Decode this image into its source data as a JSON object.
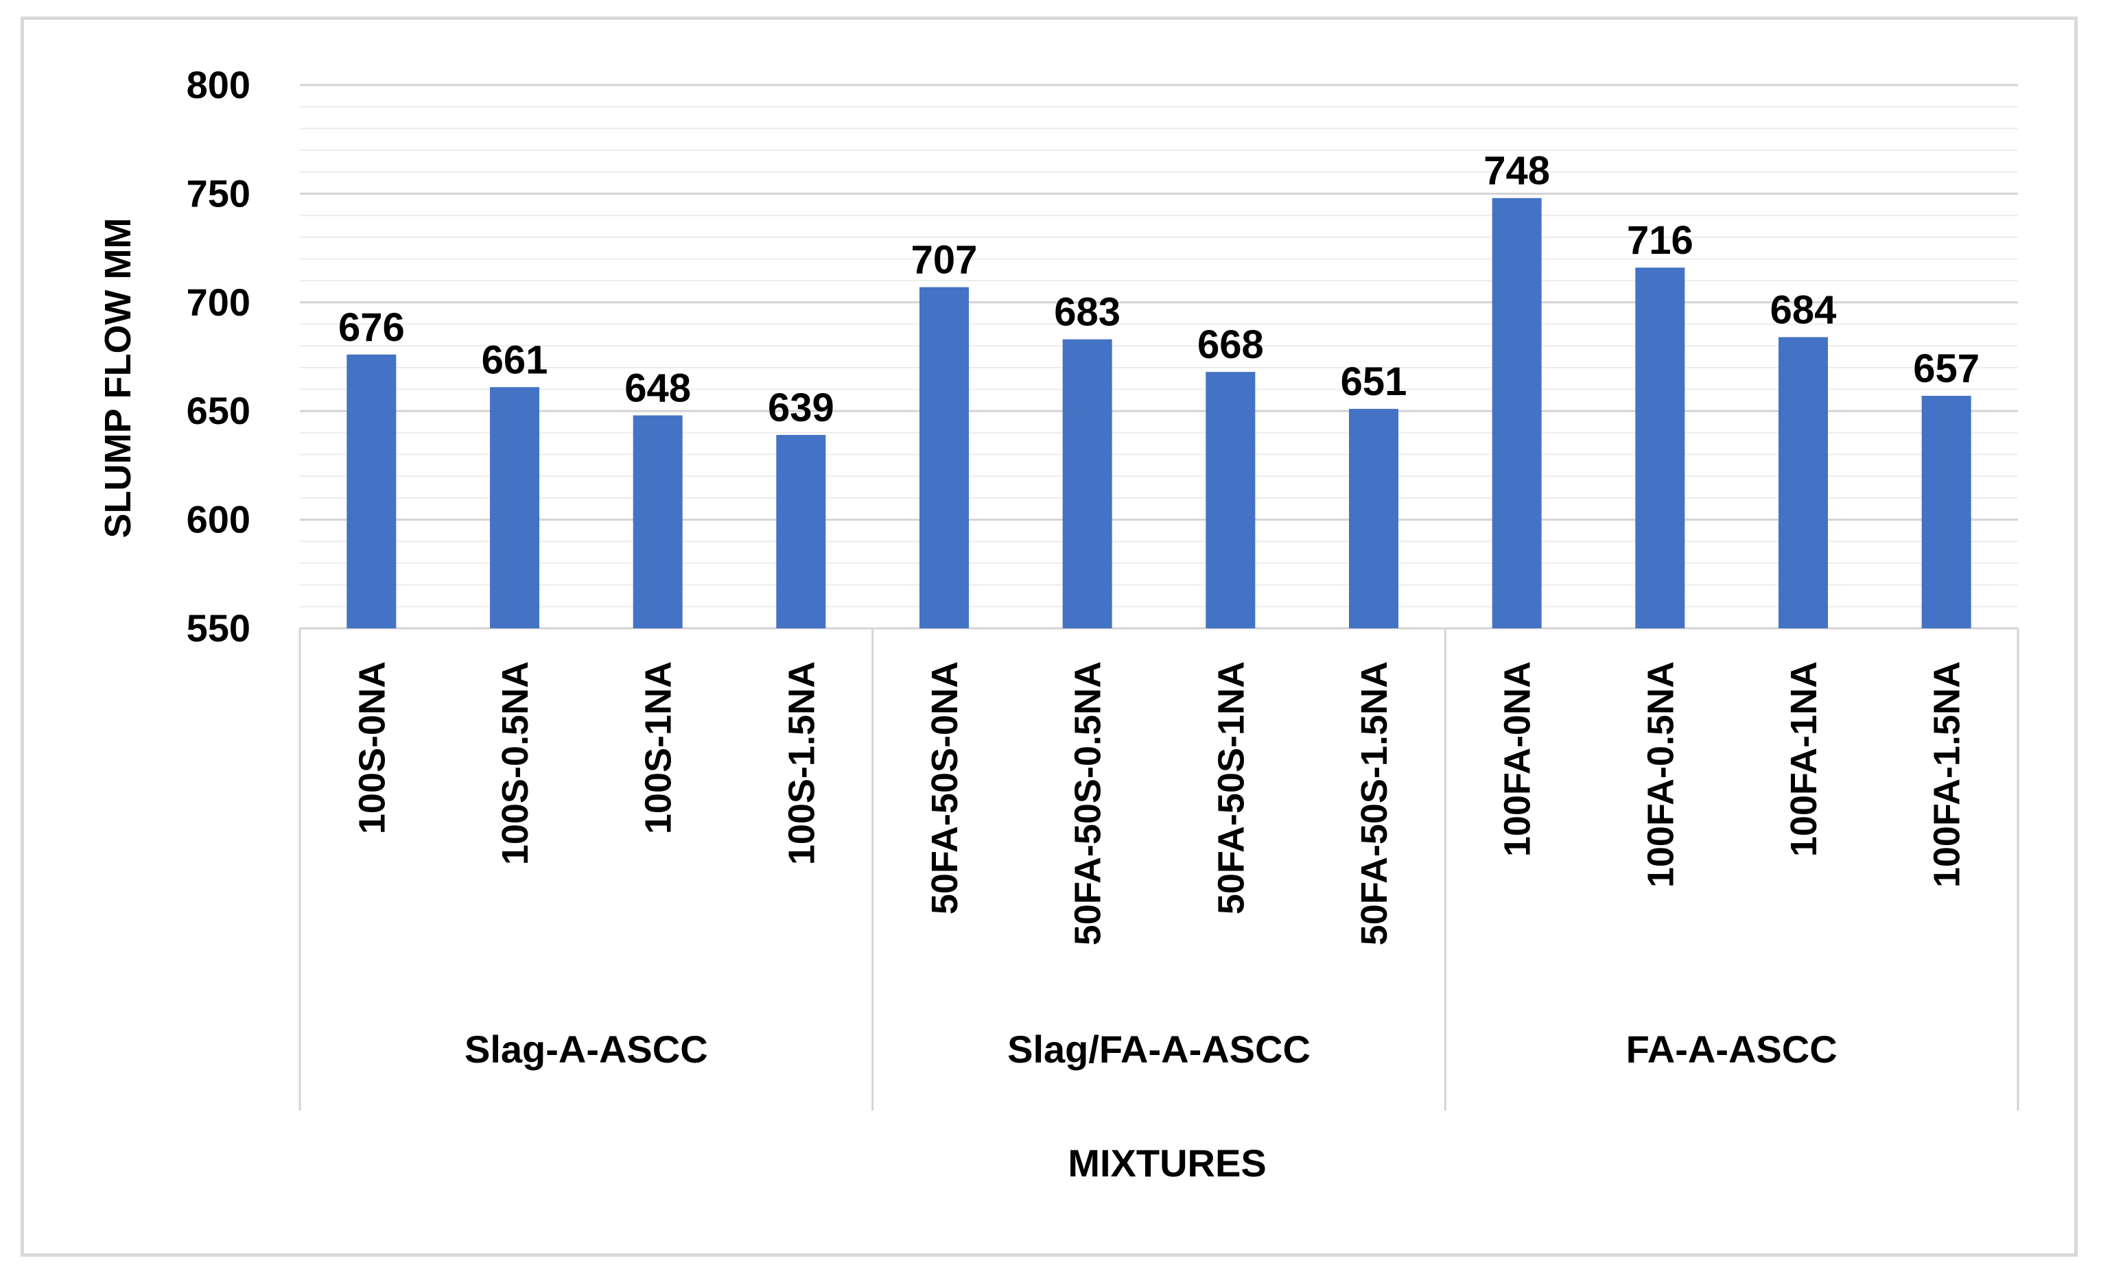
{
  "chart_data": {
    "type": "bar",
    "title": "",
    "xlabel": "MIXTURES",
    "ylabel": "SLUMP FLOW MM",
    "ylim": [
      550,
      800
    ],
    "major_ticks": [
      550,
      600,
      650,
      700,
      750,
      800
    ],
    "minor_tick_step": 10,
    "grid": true,
    "legend": "none",
    "bar_color": "#4472c4",
    "categories": [
      "100S-0NA",
      "100S-0.5NA",
      "100S-1NA",
      "100S-1.5NA",
      "50FA-50S-0NA",
      "50FA-50S-0.5NA",
      "50FA-50S-1NA",
      "50FA-50S-1.5NA",
      "100FA-0NA",
      "100FA-0.5NA",
      "100FA-1NA",
      "100FA-1.5NA"
    ],
    "values": [
      676,
      661,
      648,
      639,
      707,
      683,
      668,
      651,
      748,
      716,
      684,
      657
    ],
    "data_labels": [
      "676",
      "661",
      "648",
      "639",
      "707",
      "683",
      "668",
      "651",
      "748",
      "716",
      "684",
      "657"
    ],
    "groups": [
      {
        "label": "Slag-A-ASCC",
        "count": 4
      },
      {
        "label": "Slag/FA-A-ASCC",
        "count": 4
      },
      {
        "label": "FA-A-ASCC",
        "count": 4
      }
    ]
  }
}
